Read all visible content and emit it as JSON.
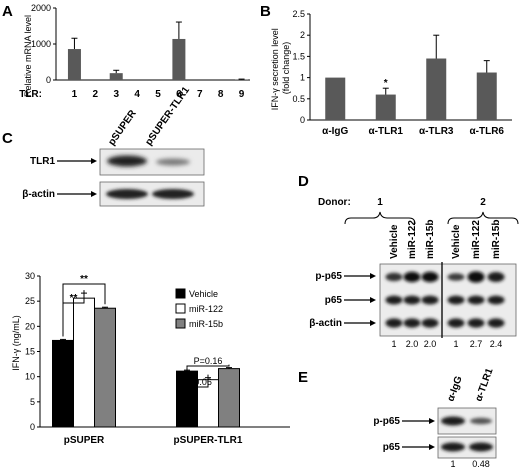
{
  "panel_labels": [
    "A",
    "B",
    "C",
    "D",
    "E"
  ],
  "chart_data": [
    {
      "panel": "A",
      "type": "bar",
      "ylabel": "Relative mRNA level",
      "xlabel": "TLR:",
      "categories": [
        "1",
        "2",
        "3",
        "4",
        "5",
        "6",
        "7",
        "8",
        "9"
      ],
      "values": [
        860,
        0,
        190,
        0,
        0,
        1140,
        0,
        0,
        10
      ],
      "errors": [
        300,
        0,
        80,
        0,
        0,
        470,
        0,
        0,
        15
      ],
      "ylim": [
        0,
        2000
      ],
      "yticks": [
        "0",
        "1000",
        "2000"
      ]
    },
    {
      "panel": "B",
      "type": "bar",
      "ylabel": "IFN-γ secretion level (fold change)",
      "categories": [
        "α-IgG",
        "α-TLR1",
        "α-TLR3",
        "α-TLR6"
      ],
      "values": [
        1.0,
        0.6,
        1.45,
        1.12
      ],
      "errors": [
        0,
        0.15,
        0.55,
        0.28
      ],
      "ylim": [
        0,
        2.5
      ],
      "yticks": [
        "0",
        "0.5",
        "1",
        "1.5",
        "2",
        "2.5"
      ],
      "annotations": [
        "*"
      ]
    },
    {
      "panel": "C",
      "type": "bar",
      "ylabel": "IFN-γ (ng/mL)",
      "categories": [
        "pSUPER",
        "pSUPER-TLR1"
      ],
      "series": [
        {
          "name": "Vehicle",
          "values": [
            17.2,
            11.1
          ],
          "errors": [
            0.2,
            0.2
          ],
          "color": "#000000"
        },
        {
          "name": "miR-122",
          "values": [
            25.6,
            9.4
          ],
          "errors": [
            1.0,
            0.4
          ],
          "color": "#ffffff"
        },
        {
          "name": "miR-15b",
          "values": [
            23.6,
            11.6
          ],
          "errors": [
            0.2,
            0.2
          ],
          "color": "#808080"
        }
      ],
      "ylim": [
        0,
        30
      ],
      "yticks": [
        "0",
        "5",
        "10",
        "15",
        "20",
        "25",
        "30"
      ],
      "annotations": [
        "**",
        "**",
        "P=0.06",
        "P=0.16"
      ],
      "legend_position": "top-right"
    }
  ],
  "blot_c": {
    "lanes": [
      "pSUPER",
      "pSUPER-TLR1"
    ],
    "rows": [
      "TLR1",
      "β-actin"
    ]
  },
  "blot_d": {
    "donor_label": "Donor:",
    "donors": [
      "1",
      "2"
    ],
    "lanes": [
      "Vehicle",
      "miR-122",
      "miR-15b",
      "Vehicle",
      "miR-122",
      "miR-15b"
    ],
    "rows": [
      "p-p65",
      "p65",
      "β-actin"
    ],
    "quant": [
      "1",
      "2.0",
      "2.0",
      "1",
      "2.7",
      "2.4"
    ]
  },
  "blot_e": {
    "lanes": [
      "α-IgG",
      "α-TLR1"
    ],
    "rows": [
      "p-p65",
      "p65"
    ],
    "quant": [
      "1",
      "0.48"
    ]
  }
}
